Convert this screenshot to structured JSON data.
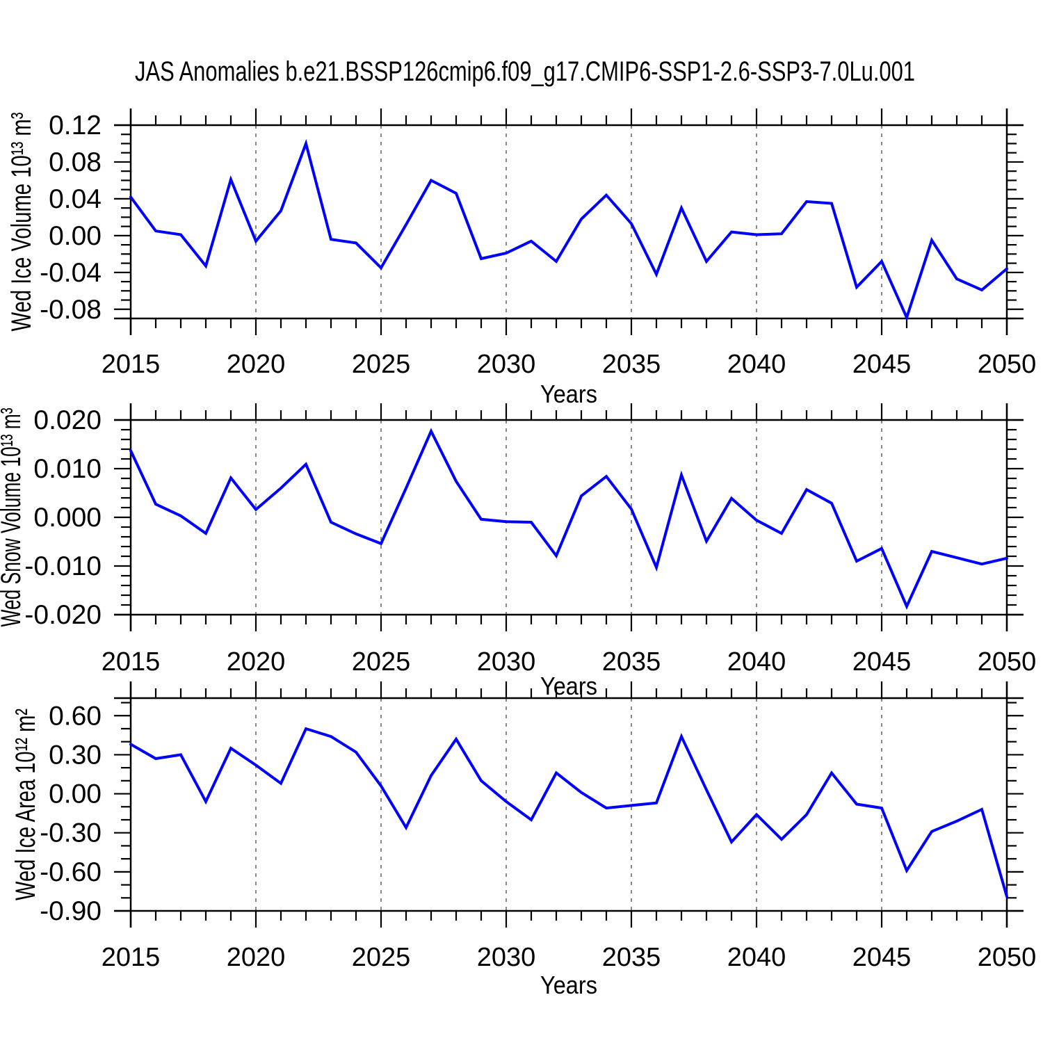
{
  "title": "JAS Anomalies b.e21.BSSP126cmip6.f09_g17.CMIP6-SSP1-2.6-SSP3-7.0Lu.001",
  "colors": {
    "line": "#0000ff",
    "grid": "#888888",
    "axis": "#000000",
    "background": "#ffffff"
  },
  "x_years": [
    2015,
    2016,
    2017,
    2018,
    2019,
    2020,
    2021,
    2022,
    2023,
    2024,
    2025,
    2026,
    2027,
    2028,
    2029,
    2030,
    2031,
    2032,
    2033,
    2034,
    2035,
    2036,
    2037,
    2038,
    2039,
    2040,
    2041,
    2042,
    2043,
    2044,
    2045,
    2046,
    2047,
    2048,
    2049,
    2050
  ],
  "chart_data": [
    {
      "type": "line",
      "title": "",
      "ylabel": "Wed Ice Volume 10¹³ m³",
      "xlabel": "Years",
      "x": [
        2015,
        2016,
        2017,
        2018,
        2019,
        2020,
        2021,
        2022,
        2023,
        2024,
        2025,
        2026,
        2027,
        2028,
        2029,
        2030,
        2031,
        2032,
        2033,
        2034,
        2035,
        2036,
        2037,
        2038,
        2039,
        2040,
        2041,
        2042,
        2043,
        2044,
        2045,
        2046,
        2047,
        2048,
        2049,
        2050
      ],
      "values": [
        0.042,
        0.005,
        0.001,
        -0.033,
        0.061,
        -0.006,
        0.027,
        0.1,
        -0.004,
        -0.008,
        -0.035,
        0.012,
        0.06,
        0.046,
        -0.025,
        -0.019,
        -0.006,
        -0.028,
        0.018,
        0.044,
        0.013,
        -0.042,
        0.03,
        -0.028,
        0.004,
        0.001,
        0.002,
        0.037,
        0.035,
        -0.056,
        -0.028,
        -0.089,
        -0.005,
        -0.047,
        -0.059,
        -0.036
      ],
      "xlim": [
        2015,
        2050
      ],
      "ylim": [
        -0.09,
        0.12
      ],
      "yticks": [
        0.12,
        0.08,
        0.04,
        0.0,
        -0.04,
        -0.08
      ],
      "ytick_labels": [
        "0.12",
        "0.08",
        "0.04",
        "0.00",
        "-0.04",
        "-0.08"
      ],
      "y_minor_step": 0.01,
      "xticks": [
        2015,
        2020,
        2025,
        2030,
        2035,
        2040,
        2045,
        2050
      ],
      "xtick_labels": [
        "2015",
        "2020",
        "2025",
        "2030",
        "2035",
        "2040",
        "2045",
        "2050"
      ],
      "x_minor_step": 1,
      "grid_x": [
        2020,
        2025,
        2030,
        2035,
        2040,
        2045
      ],
      "grid_style": "dashed-vertical",
      "legend": "none"
    },
    {
      "type": "line",
      "title": "",
      "ylabel": "Wed Snow Volume 10¹³ m³",
      "xlabel": "Years",
      "x": [
        2015,
        2016,
        2017,
        2018,
        2019,
        2020,
        2021,
        2022,
        2023,
        2024,
        2025,
        2026,
        2027,
        2028,
        2029,
        2030,
        2031,
        2032,
        2033,
        2034,
        2035,
        2036,
        2037,
        2038,
        2039,
        2040,
        2041,
        2042,
        2043,
        2044,
        2045,
        2046,
        2047,
        2048,
        2049,
        2050
      ],
      "values": [
        0.0137,
        0.0027,
        0.0003,
        -0.0033,
        0.0081,
        0.0016,
        0.006,
        0.0109,
        -0.001,
        -0.0034,
        -0.0054,
        0.006,
        0.0177,
        0.0074,
        -0.0004,
        -0.0009,
        -0.001,
        -0.0079,
        0.0044,
        0.0084,
        0.0017,
        -0.0103,
        0.0087,
        -0.0049,
        0.0039,
        -0.0006,
        -0.0033,
        0.0057,
        0.0029,
        -0.009,
        -0.0064,
        -0.0183,
        -0.007,
        -0.0083,
        -0.0096,
        -0.0084
      ],
      "xlim": [
        2015,
        2050
      ],
      "ylim": [
        -0.02,
        0.02
      ],
      "yticks": [
        0.02,
        0.01,
        0.0,
        -0.01,
        -0.02
      ],
      "ytick_labels": [
        "0.020",
        "0.010",
        "0.000",
        "-0.010",
        "-0.020"
      ],
      "y_minor_step": 0.002,
      "xticks": [
        2015,
        2020,
        2025,
        2030,
        2035,
        2040,
        2045,
        2050
      ],
      "xtick_labels": [
        "2015",
        "2020",
        "2025",
        "2030",
        "2035",
        "2040",
        "2045",
        "2050"
      ],
      "x_minor_step": 1,
      "grid_x": [
        2020,
        2025,
        2030,
        2035,
        2040,
        2045
      ],
      "grid_style": "dashed-vertical",
      "legend": "none"
    },
    {
      "type": "line",
      "title": "",
      "ylabel": "Wed Ice Area 10¹² m²",
      "xlabel": "Years",
      "x": [
        2015,
        2016,
        2017,
        2018,
        2019,
        2020,
        2021,
        2022,
        2023,
        2024,
        2025,
        2026,
        2027,
        2028,
        2029,
        2030,
        2031,
        2032,
        2033,
        2034,
        2035,
        2036,
        2037,
        2038,
        2039,
        2040,
        2041,
        2042,
        2043,
        2044,
        2045,
        2046,
        2047,
        2048,
        2049,
        2050
      ],
      "values": [
        0.38,
        0.27,
        0.3,
        -0.06,
        0.35,
        0.22,
        0.08,
        0.5,
        0.44,
        0.32,
        0.06,
        -0.26,
        0.14,
        0.42,
        0.1,
        -0.06,
        -0.2,
        0.16,
        0.01,
        -0.11,
        -0.09,
        -0.07,
        0.44,
        0.03,
        -0.37,
        -0.16,
        -0.35,
        -0.16,
        0.16,
        -0.08,
        -0.11,
        -0.59,
        -0.29,
        -0.21,
        -0.12,
        -0.79
      ],
      "xlim": [
        2015,
        2050
      ],
      "ylim": [
        -0.9,
        0.735
      ],
      "yticks": [
        0.6,
        0.3,
        0.0,
        -0.3,
        -0.6,
        -0.9
      ],
      "ytick_labels": [
        "0.60",
        "0.30",
        "0.00",
        "-0.30",
        "-0.60",
        "-0.90"
      ],
      "y_minor_step": 0.1,
      "xticks": [
        2015,
        2020,
        2025,
        2030,
        2035,
        2040,
        2045,
        2050
      ],
      "xtick_labels": [
        "2015",
        "2020",
        "2025",
        "2030",
        "2035",
        "2040",
        "2045",
        "2050"
      ],
      "x_minor_step": 1,
      "grid_x": [
        2020,
        2025,
        2030,
        2035,
        2040,
        2045
      ],
      "grid_style": "dashed-vertical",
      "legend": "none"
    }
  ]
}
